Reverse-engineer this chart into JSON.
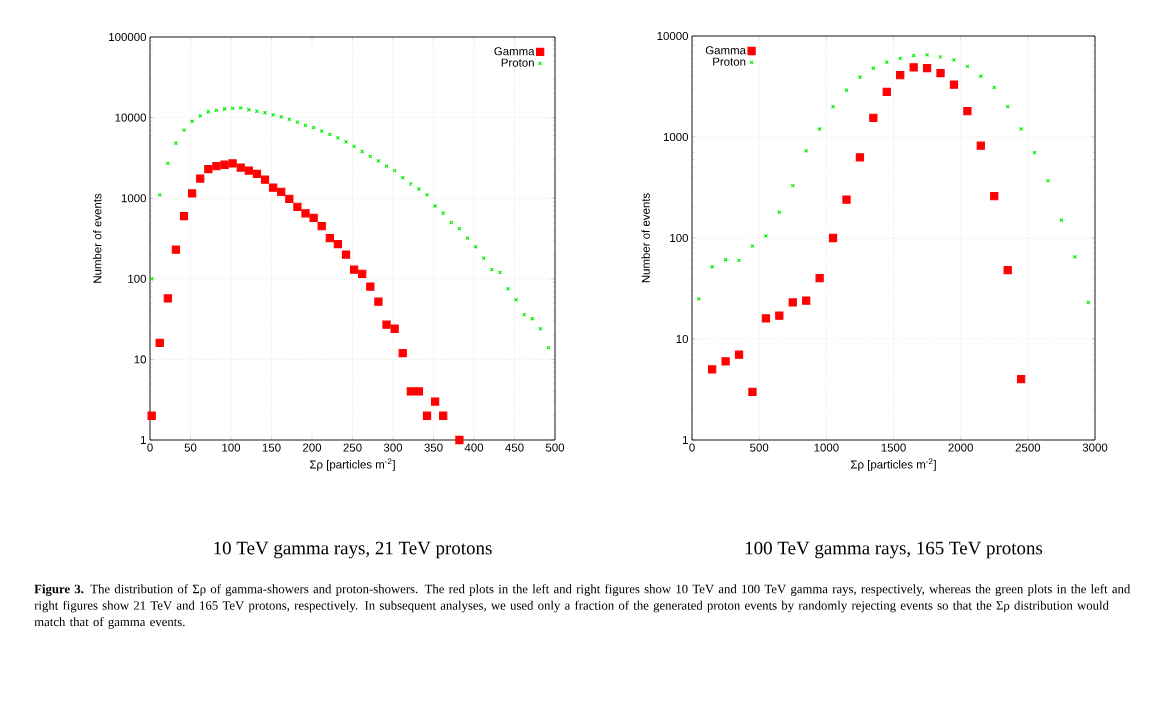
{
  "chart_data": [
    {
      "type": "scatter",
      "subtitle": "10 TeV gamma rays, 21 TeV protons",
      "xlabel": "Σρ [particles m$^{-2}$]",
      "ylabel": "Number of events",
      "xlim": [
        0,
        500
      ],
      "ylim": [
        1,
        100000
      ],
      "xticks": [
        0,
        50,
        100,
        150,
        200,
        250,
        300,
        350,
        400,
        450,
        500
      ],
      "yticks": [
        1,
        10,
        100,
        1000,
        10000,
        100000
      ],
      "log": "y",
      "grid": true,
      "legend": "top right",
      "series": [
        {
          "name": "Gamma",
          "color": "#ff0000",
          "marker": "square",
          "x": [
            2,
            12,
            22,
            32,
            42,
            52,
            62,
            72,
            82,
            92,
            102,
            112,
            122,
            132,
            142,
            152,
            162,
            172,
            182,
            192,
            202,
            212,
            222,
            232,
            242,
            252,
            262,
            272,
            282,
            292,
            302,
            312,
            322,
            332,
            342,
            352,
            362,
            382
          ],
          "values": [
            2,
            16,
            57,
            230,
            600,
            1150,
            1750,
            2300,
            2500,
            2600,
            2700,
            2400,
            2200,
            2000,
            1700,
            1350,
            1200,
            980,
            780,
            650,
            570,
            450,
            320,
            270,
            200,
            130,
            115,
            80,
            52,
            27,
            24,
            12,
            4,
            4,
            2,
            3,
            2,
            1
          ]
        },
        {
          "name": "Proton",
          "color": "#00ee00",
          "marker": "cross",
          "x": [
            2,
            12,
            22,
            32,
            42,
            52,
            62,
            72,
            82,
            92,
            102,
            112,
            122,
            132,
            142,
            152,
            162,
            172,
            182,
            192,
            202,
            212,
            222,
            232,
            242,
            252,
            262,
            272,
            282,
            292,
            302,
            312,
            322,
            332,
            342,
            352,
            362,
            372,
            382,
            392,
            402,
            412,
            422,
            432,
            442,
            452,
            462,
            472,
            482,
            492
          ],
          "values": [
            100,
            1100,
            2700,
            4800,
            7000,
            9000,
            10500,
            11800,
            12300,
            12800,
            13000,
            13200,
            12500,
            12000,
            11500,
            10800,
            10200,
            9500,
            8800,
            8000,
            7500,
            6800,
            6200,
            5600,
            5000,
            4400,
            3800,
            3300,
            2900,
            2500,
            2200,
            1800,
            1500,
            1300,
            1100,
            800,
            650,
            500,
            420,
            320,
            250,
            180,
            130,
            120,
            75,
            55,
            36,
            32,
            24,
            14
          ]
        }
      ],
      "annotations": [
        "**Figure 3.** The distribution of Σρ of gamma-showers and proton-showers. The red plots in the left and right figures show 10 TeV and 100 TeV gamma rays, respectively, whereas the green plots in the left and right figures show 21 TeV and 165 TeV protons, respectively. In subsequent analyses, we used only a fraction of the generated proton events by randomly rejecting events so that the Σρ distribution would match that of gamma events."
      ]
    },
    {
      "type": "scatter",
      "subtitle": "100 TeV gamma rays, 165 TeV protons",
      "xlabel": "Σρ [particles m$^{-2}$]",
      "ylabel": "Number of events",
      "xlim": [
        0,
        3000
      ],
      "ylim": [
        1,
        10000
      ],
      "xticks": [
        0,
        500,
        1000,
        1500,
        2000,
        2500,
        3000
      ],
      "yticks": [
        1,
        10,
        100,
        1000,
        10000
      ],
      "log": "y",
      "grid": true,
      "legend": "top left",
      "series": [
        {
          "name": "Gamma",
          "color": "#ff0000",
          "marker": "square",
          "x": [
            150,
            250,
            350,
            450,
            550,
            650,
            750,
            850,
            950,
            1050,
            1150,
            1250,
            1350,
            1450,
            1550,
            1650,
            1750,
            1850,
            1950,
            2050,
            2150,
            2250,
            2350,
            2450
          ],
          "values": [
            5,
            6,
            7,
            3,
            16,
            17,
            23,
            24,
            40,
            100,
            240,
            630,
            1550,
            2800,
            4100,
            4900,
            4800,
            4300,
            3300,
            1800,
            820,
            260,
            48,
            4
          ]
        },
        {
          "name": "Proton",
          "color": "#00ee00",
          "marker": "cross",
          "x": [
            50,
            150,
            250,
            350,
            450,
            550,
            650,
            750,
            850,
            950,
            1050,
            1150,
            1250,
            1350,
            1450,
            1550,
            1650,
            1750,
            1850,
            1950,
            2050,
            2150,
            2250,
            2350,
            2450,
            2550,
            2650,
            2750,
            2850,
            2950
          ],
          "values": [
            25,
            52,
            61,
            60,
            83,
            105,
            180,
            330,
            730,
            1200,
            2000,
            2900,
            3900,
            4800,
            5500,
            6000,
            6400,
            6500,
            6200,
            5800,
            5000,
            4000,
            3100,
            2000,
            1200,
            700,
            370,
            150,
            65,
            23
          ]
        }
      ]
    }
  ]
}
